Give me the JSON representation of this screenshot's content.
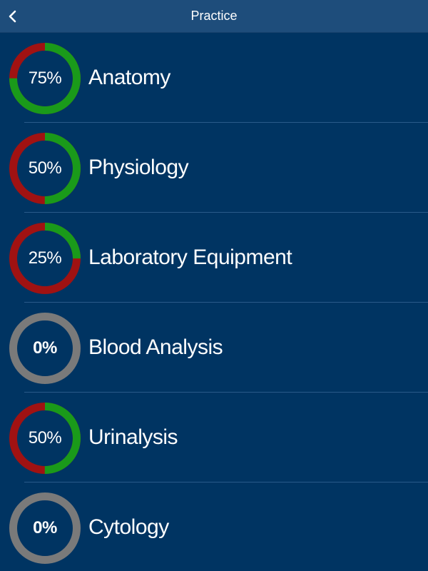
{
  "navbar": {
    "title": "Practice",
    "back_icon": "chevron-left-icon"
  },
  "colors": {
    "background": "#003462",
    "navbar": "#1e4d7b",
    "progress_complete": "#1a9a1a",
    "progress_remaining": "#a01212",
    "progress_empty": "#7a7a7a",
    "text": "#ffffff"
  },
  "topics": [
    {
      "label": "Anatomy",
      "percent_text": "75%",
      "progress": 0.75
    },
    {
      "label": "Physiology",
      "percent_text": "50%",
      "progress": 0.5
    },
    {
      "label": "Laboratory Equipment",
      "percent_text": "25%",
      "progress": 0.25
    },
    {
      "label": "Blood Analysis",
      "percent_text": "0%",
      "progress": 0
    },
    {
      "label": "Urinalysis",
      "percent_text": "50%",
      "progress": 0.5
    },
    {
      "label": "Cytology",
      "percent_text": "0%",
      "progress": 0
    }
  ]
}
